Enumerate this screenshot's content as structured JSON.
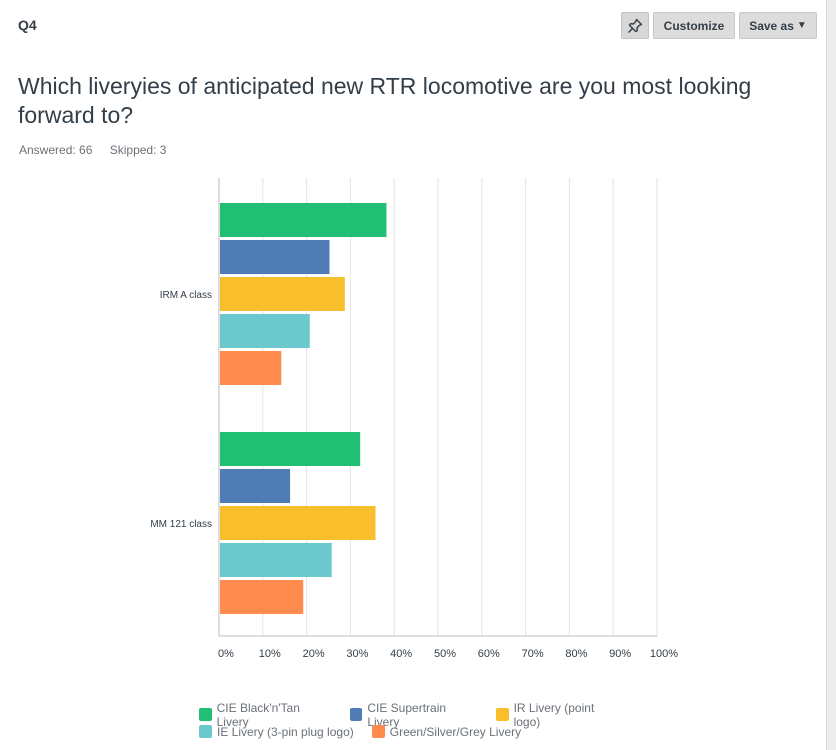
{
  "header": {
    "question_number": "Q4",
    "customize_label": "Customize",
    "save_label": "Save as"
  },
  "question": {
    "title": "Which liveryies of anticipated new RTR locomotive are you most looking forward to?",
    "answered": "Answered: 66",
    "skipped": "Skipped: 3"
  },
  "colors": {
    "accent_green": "#21bf73"
  },
  "chart_data": {
    "type": "bar",
    "orientation": "horizontal",
    "title": "",
    "xlabel": "",
    "ylabel": "",
    "xlim": [
      0,
      100
    ],
    "grid": true,
    "legend_position": "bottom",
    "categories": [
      "IRM A class",
      "MM 121 class"
    ],
    "tick_labels": [
      "0%",
      "10%",
      "20%",
      "30%",
      "40%",
      "50%",
      "60%",
      "70%",
      "80%",
      "90%",
      "100%"
    ],
    "series": [
      {
        "name": "CIE Black'n'Tan Livery",
        "color": "#21bf73",
        "values": [
          38,
          32
        ]
      },
      {
        "name": "CIE Supertrain Livery",
        "color": "#507cb6",
        "values": [
          25,
          16
        ]
      },
      {
        "name": "IR Livery (point logo)",
        "color": "#f9be2c",
        "values": [
          28.5,
          35.5
        ]
      },
      {
        "name": "IE Livery (3-pin plug logo)",
        "color": "#6bc8cd",
        "values": [
          20.5,
          25.5
        ]
      },
      {
        "name": "Green/Silver/Grey Livery",
        "color": "#ff8b4f",
        "values": [
          14,
          19
        ]
      }
    ]
  }
}
